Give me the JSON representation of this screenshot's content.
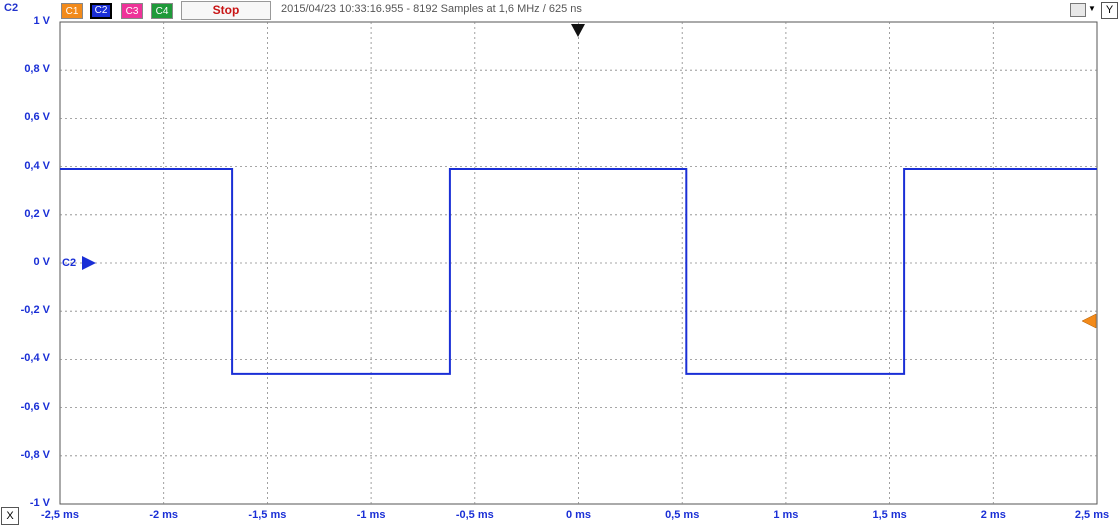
{
  "window": {
    "channel_label": "C2",
    "channels": [
      {
        "label": "C1",
        "color": "#f28a1a",
        "selected": false
      },
      {
        "label": "C2",
        "color": "#1a2fd6",
        "selected": true
      },
      {
        "label": "C3",
        "color": "#ee3399",
        "selected": false
      },
      {
        "label": "C4",
        "color": "#1f9a3a",
        "selected": false
      }
    ],
    "stop_label": "Stop",
    "info": "2015/04/23 10:33:16.955 - 8192 Samples at 1,6 MHz / 625 ns",
    "y_button": "Y",
    "x_button": "X",
    "tool_icon": "settings-menu-icon"
  },
  "axes": {
    "y_ticks": [
      "1 V",
      "0,8 V",
      "0,6 V",
      "0,4 V",
      "0,2 V",
      "0 V",
      "-0,2 V",
      "-0,4 V",
      "-0,6 V",
      "-0,8 V",
      "-1 V"
    ],
    "x_ticks": [
      "-2,5 ms",
      "-2 ms",
      "-1,5 ms",
      "-1 ms",
      "-0,5 ms",
      "0 ms",
      "0,5 ms",
      "1 ms",
      "1,5 ms",
      "2 ms",
      "2,5 ms"
    ],
    "channel_marker_label": "C2"
  },
  "chart_data": {
    "type": "line",
    "xlabel": "",
    "ylabel": "",
    "xlim": [
      -2.5,
      2.5
    ],
    "ylim": [
      -1,
      1
    ],
    "grid": true,
    "series": [
      {
        "name": "C2",
        "color": "#1a2fd6",
        "x": [
          -2.5,
          -1.67,
          -1.67,
          -0.62,
          -0.62,
          0.52,
          0.52,
          1.57,
          1.57,
          2.5
        ],
        "y": [
          0.39,
          0.39,
          -0.46,
          -0.46,
          0.39,
          0.39,
          -0.46,
          -0.46,
          0.39,
          0.39
        ]
      }
    ],
    "markers": {
      "trigger_time_ms": 0,
      "c2_offset_v": 0,
      "trigger_level_v": -0.25
    }
  }
}
